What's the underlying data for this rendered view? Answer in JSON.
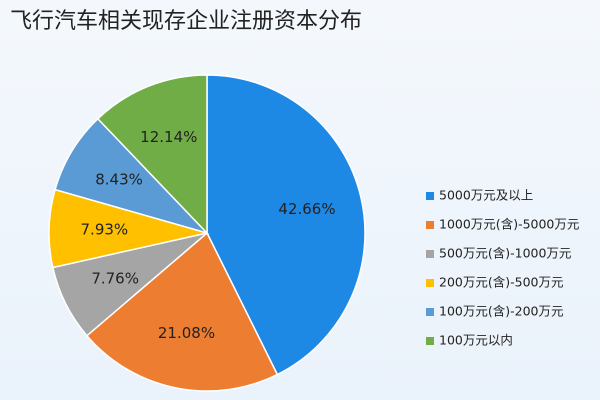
{
  "chart_data": {
    "type": "pie",
    "title": "飞行汽车相关现存企业注册资本分布",
    "categories": [
      "5000万元及以上",
      "1000万元(含)-5000万元",
      "500万元(含)-1000万元",
      "200万元(含)-500万元",
      "100万元(含)-200万元",
      "100万元以内"
    ],
    "values": [
      42.66,
      21.08,
      7.76,
      7.93,
      8.43,
      12.14
    ],
    "value_labels": [
      "42.66%",
      "21.08%",
      "7.76%",
      "7.93%",
      "8.43%",
      "12.14%"
    ],
    "colors": [
      "#1e88e5",
      "#ed7d31",
      "#a5a5a5",
      "#ffc000",
      "#5b9bd5",
      "#70ad47"
    ],
    "legend": "right"
  }
}
